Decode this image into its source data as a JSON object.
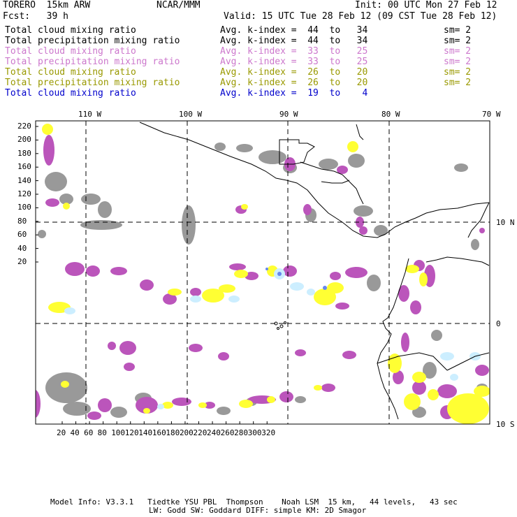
{
  "header": {
    "model": "TORERO  15km ARW",
    "org": "NCAR/MMM",
    "init": "Init: 00 UTC Mon 27 Feb 12",
    "fcst": "Fcst:   39 h",
    "valid": "Valid: 15 UTC Tue 28 Feb 12 (09 CST Tue 28 Feb 12)"
  },
  "legend": [
    {
      "field": "Total cloud mixing ratio",
      "kindex": "Avg. k-index =  44  to   34",
      "sm": "sm= 2",
      "color": "#000000"
    },
    {
      "field": "Total precipitation mixing ratio",
      "kindex": "Avg. k-index =  44  to   34",
      "sm": "sm= 2",
      "color": "#000000"
    },
    {
      "field": "Total cloud mixing ratio",
      "kindex": "Avg. k-index =  33  to   25",
      "sm": "sm= 2",
      "color": "#cc77cc"
    },
    {
      "field": "Total precipitation mixing ratio",
      "kindex": "Avg. k-index =  33  to   25",
      "sm": "sm= 2",
      "color": "#cc77cc"
    },
    {
      "field": "Total cloud mixing ratio",
      "kindex": "Avg. k-index =  26  to   20",
      "sm": "sm= 2",
      "color": "#999900"
    },
    {
      "field": "Total precipitation mixing ratio",
      "kindex": "Avg. k-index =  26  to   20",
      "sm": "sm= 2",
      "color": "#999900"
    },
    {
      "field": "Total cloud mixing ratio",
      "kindex": "Avg. k-index =  19  to    4",
      "sm": "",
      "color": "#0000cc"
    }
  ],
  "longitude_labels": [
    "110 W",
    "100 W",
    "90 W",
    "80 W",
    "70 W"
  ],
  "latitude_labels": [
    "10 N",
    "0",
    "10 S"
  ],
  "y_ticks": [
    "220",
    "200",
    "180",
    "160",
    "140",
    "120",
    "100",
    "80",
    "60",
    "40",
    "20"
  ],
  "x_ticks": [
    "20",
    "40",
    "60",
    "80",
    "100",
    "120",
    "140",
    "160",
    "180",
    "200",
    "220",
    "240",
    "260",
    "280",
    "300",
    "320"
  ],
  "footer": {
    "line1": "Model Info: V3.3.1   Tiedtke YSU PBL  Thompson    Noah LSM  15 km,   44 levels,   43 sec",
    "line2": "LW: Godd SW: Goddard DIFF: simple KM: 2D Smagor"
  },
  "colors": {
    "gray": "#999999",
    "purple": "#bb55bb",
    "yellow": "#ffff33",
    "lightblue": "#cceeff",
    "blue": "#6688ee"
  }
}
